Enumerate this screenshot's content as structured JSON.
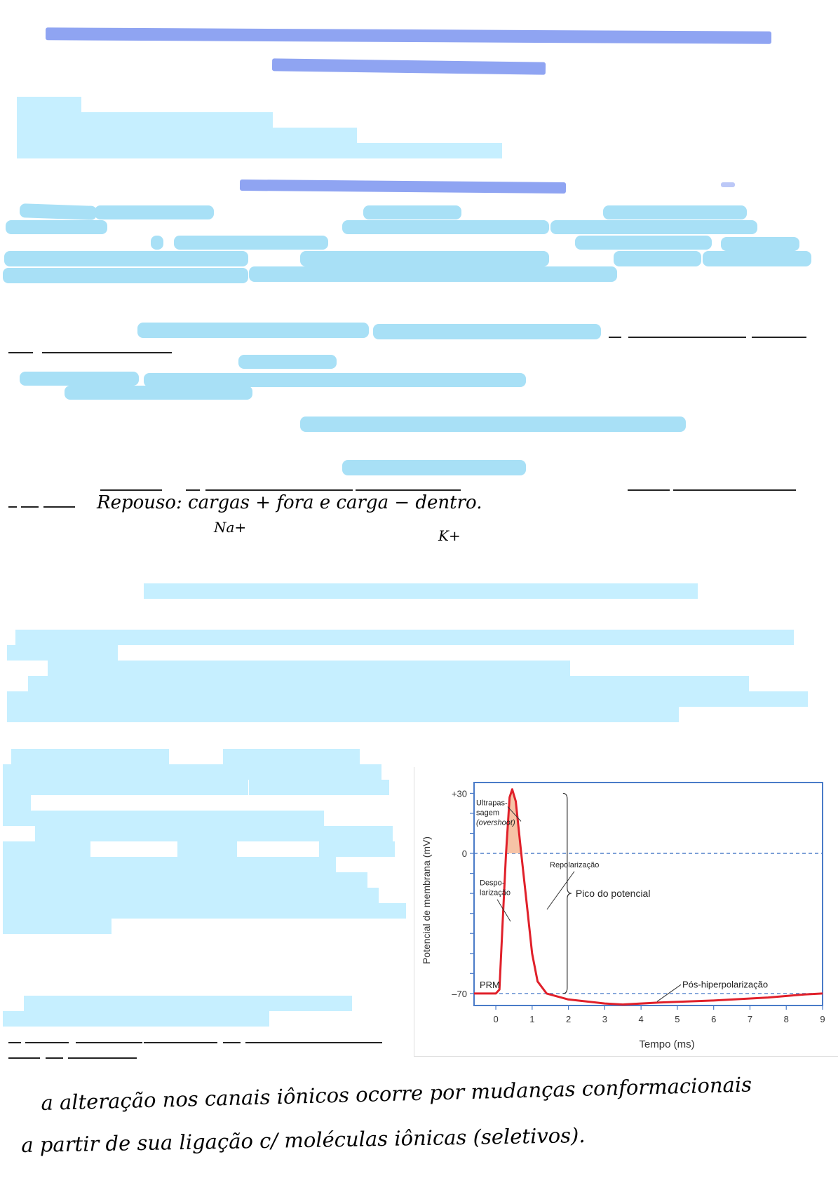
{
  "handwritten_notes": {
    "line1": "Repouso: cargas + fora e carga − dentro.",
    "line1_sub_na": "Na+",
    "line1_sub_k": "K+",
    "line2": "a alteração nos canais iônicos ocorre por mudanças conformacionais",
    "line3": "a partir de sua ligação c/ moléculas iônicas (seletivos)."
  },
  "chart_data": {
    "type": "line",
    "title": "",
    "xlabel": "Tempo (ms)",
    "ylabel": "Potencial de membrana (mV)",
    "xlim": [
      -0.6,
      9
    ],
    "ylim": [
      -76,
      34
    ],
    "x_ticks": [
      "0",
      "1",
      "2",
      "3",
      "4",
      "5",
      "6",
      "7",
      "8",
      "9"
    ],
    "y_ticks": [
      "+30",
      "0",
      "–70"
    ],
    "series": [
      {
        "name": "",
        "color": "#e0202a",
        "points": [
          [
            -0.6,
            -70
          ],
          [
            0,
            -70
          ],
          [
            0.1,
            -68
          ],
          [
            0.2,
            -30
          ],
          [
            0.28,
            0
          ],
          [
            0.38,
            28
          ],
          [
            0.45,
            32
          ],
          [
            0.55,
            26
          ],
          [
            0.7,
            0
          ],
          [
            0.85,
            -25
          ],
          [
            1.0,
            -50
          ],
          [
            1.15,
            -64
          ],
          [
            1.4,
            -70
          ],
          [
            2.0,
            -73
          ],
          [
            3.0,
            -75
          ],
          [
            3.5,
            -75.5
          ],
          [
            4.5,
            -74.5
          ],
          [
            6.0,
            -73.5
          ],
          [
            7.5,
            -72
          ],
          [
            8.5,
            -70.5
          ],
          [
            9,
            -70
          ]
        ]
      }
    ],
    "reference_lines": [
      0,
      -70
    ],
    "annotations": {
      "overshoot_line1": "Ultrapas-",
      "overshoot_line2": "sagem",
      "overshoot_line3": "(overshoot)",
      "depol_line1": "Despo-",
      "depol_line2": "larização",
      "repol": "Repolarização",
      "peak": "Pico do potencial",
      "rmp": "PRM",
      "afterhyper": "Pós-hiperpolarização"
    },
    "colors": {
      "curve": "#e0202a",
      "overshoot_fill": "#f6c3a6",
      "axis": "#4a7bc8",
      "dashed": "#4a7bc8"
    }
  }
}
